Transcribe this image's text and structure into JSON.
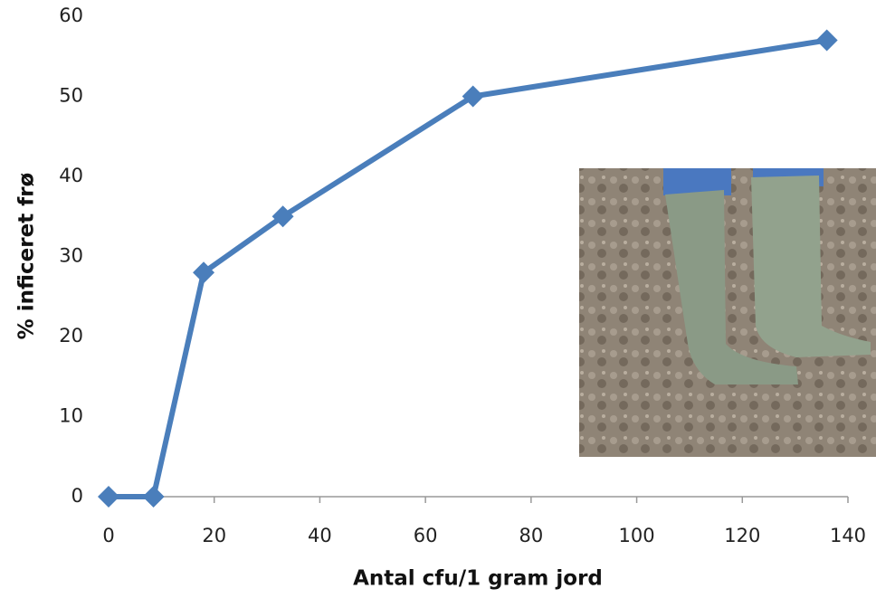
{
  "chart_data": {
    "type": "line",
    "x_label": "Antal cfu/1 gram jord",
    "y_label": "% inficeret frø",
    "x": [
      0,
      8.5,
      18,
      33,
      69,
      136
    ],
    "series": [
      {
        "color": "#4a7ebb",
        "values": [
          0,
          0,
          28,
          35,
          50,
          57
        ]
      }
    ],
    "xlim": [
      0,
      140
    ],
    "xticks": [
      0,
      20,
      40,
      60,
      80,
      100,
      120,
      140
    ],
    "ylim": [
      0,
      60
    ],
    "yticks": [
      0,
      10,
      20,
      30,
      40,
      50,
      60
    ]
  }
}
